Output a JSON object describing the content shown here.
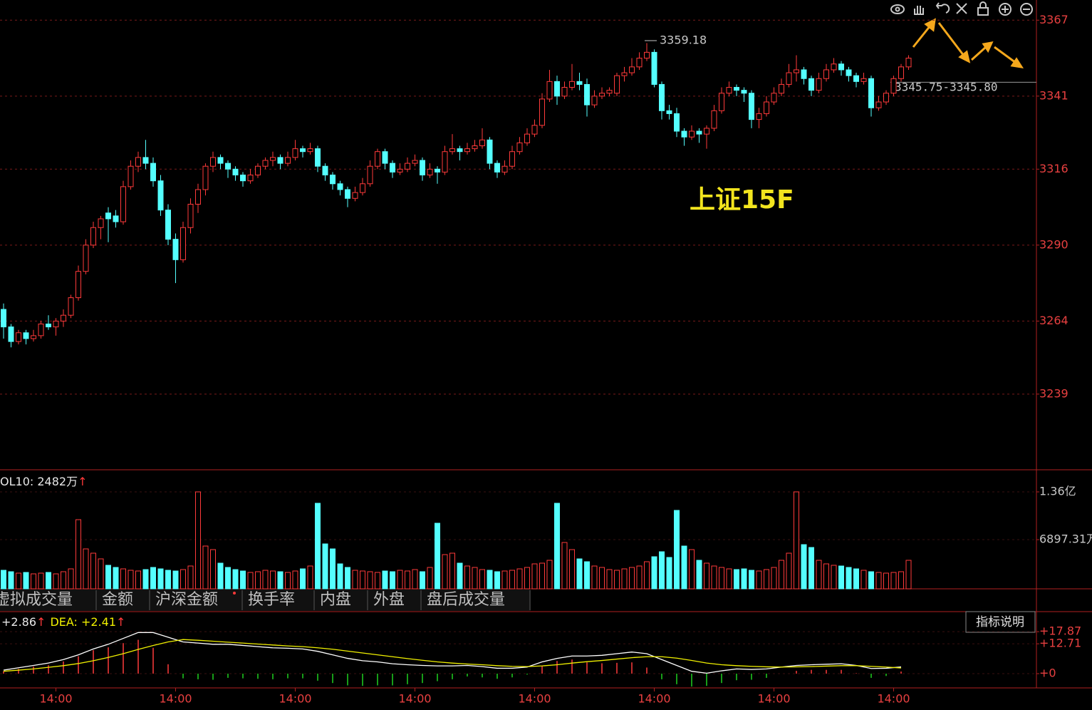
{
  "chart_data": [
    {
      "type": "candlestick",
      "up_color": "#ff3a3a",
      "down_color": "#54ffff",
      "ylim": [
        3213.1,
        3373.9
      ],
      "yticks": [
        3367,
        3341,
        3316,
        3290,
        3264,
        3239
      ],
      "grid": true,
      "categories": [
        null,
        null,
        null,
        null,
        null,
        null,
        null,
        "14:00",
        null,
        null,
        null,
        null,
        null,
        null,
        null,
        null,
        null,
        null,
        null,
        null,
        null,
        null,
        null,
        "14:00",
        null,
        null,
        null,
        null,
        null,
        null,
        null,
        null,
        null,
        null,
        null,
        null,
        null,
        null,
        null,
        "14:00",
        null,
        null,
        null,
        null,
        null,
        null,
        null,
        null,
        null,
        null,
        null,
        null,
        null,
        null,
        null,
        "14:00",
        null,
        null,
        null,
        null,
        null,
        null,
        null,
        null,
        null,
        null,
        null,
        null,
        null,
        null,
        null,
        "14:00",
        null,
        null,
        null,
        null,
        null,
        null,
        null,
        null,
        null,
        null,
        null,
        null,
        null,
        null,
        null,
        "14:00",
        null,
        null,
        null,
        null,
        null,
        null,
        null,
        null,
        null,
        null,
        null,
        null,
        null,
        null,
        null,
        "14:00",
        null,
        null,
        null,
        null,
        null,
        null,
        null,
        null,
        null,
        null,
        null,
        null,
        null,
        null,
        null,
        "14:00",
        null,
        null
      ],
      "candles": [
        [
          3268,
          3270,
          3258,
          3262
        ],
        [
          3262,
          3263,
          3255,
          3257
        ],
        [
          3257,
          3261,
          3256,
          3260
        ],
        [
          3260,
          3261,
          3256,
          3258
        ],
        [
          3258,
          3261,
          3257,
          3259
        ],
        [
          3259,
          3264,
          3258,
          3263
        ],
        [
          3263,
          3266,
          3261,
          3262
        ],
        [
          3262,
          3265,
          3259,
          3264
        ],
        [
          3264,
          3268,
          3262,
          3266
        ],
        [
          3266,
          3273,
          3265,
          3272
        ],
        [
          3272,
          3283,
          3271,
          3281
        ],
        [
          3281,
          3292,
          3280,
          3290
        ],
        [
          3290,
          3298,
          3289,
          3296
        ],
        [
          3296,
          3300,
          3292,
          3299
        ],
        [
          3301,
          3303,
          3291,
          3299
        ],
        [
          3300,
          3302,
          3296,
          3298
        ],
        [
          3298,
          3312,
          3297,
          3310
        ],
        [
          3310,
          3319,
          3309,
          3317
        ],
        [
          3317,
          3322,
          3315,
          3320
        ],
        [
          3320,
          3326,
          3316,
          3318
        ],
        [
          3318,
          3320,
          3310,
          3312
        ],
        [
          3312,
          3314,
          3300,
          3302
        ],
        [
          3302,
          3304,
          3290,
          3292
        ],
        [
          3292,
          3294,
          3277,
          3285
        ],
        [
          3285,
          3298,
          3284,
          3296
        ],
        [
          3296,
          3306,
          3294,
          3304
        ],
        [
          3304,
          3311,
          3301,
          3309
        ],
        [
          3309,
          3318,
          3307,
          3317
        ],
        [
          3317,
          3322,
          3315,
          3320
        ],
        [
          3320,
          3321,
          3316,
          3318
        ],
        [
          3318,
          3319,
          3313,
          3316
        ],
        [
          3316,
          3317,
          3312,
          3314
        ],
        [
          3314,
          3315,
          3310,
          3312
        ],
        [
          3312,
          3316,
          3311,
          3314
        ],
        [
          3314,
          3318,
          3313,
          3317
        ],
        [
          3317,
          3320,
          3316,
          3319
        ],
        [
          3319,
          3322,
          3317,
          3320
        ],
        [
          3320,
          3321,
          3316,
          3318
        ],
        [
          3318,
          3322,
          3317,
          3320
        ],
        [
          3320,
          3326,
          3319,
          3323
        ],
        [
          3323,
          3324,
          3320,
          3322
        ],
        [
          3322,
          3325,
          3321,
          3323
        ],
        [
          3323,
          3324,
          3315,
          3317
        ],
        [
          3317,
          3318,
          3312,
          3314
        ],
        [
          3314,
          3315,
          3309,
          3311
        ],
        [
          3311,
          3312,
          3307,
          3309
        ],
        [
          3309,
          3310,
          3303,
          3306
        ],
        [
          3306,
          3310,
          3305,
          3308
        ],
        [
          3308,
          3313,
          3307,
          3311
        ],
        [
          3311,
          3319,
          3310,
          3317
        ],
        [
          3317,
          3323,
          3316,
          3322
        ],
        [
          3322,
          3323,
          3316,
          3318
        ],
        [
          3318,
          3319,
          3313,
          3315
        ],
        [
          3315,
          3318,
          3314,
          3316
        ],
        [
          3316,
          3320,
          3315,
          3318
        ],
        [
          3318,
          3321,
          3317,
          3319
        ],
        [
          3319,
          3320,
          3312,
          3314
        ],
        [
          3314,
          3318,
          3313,
          3316
        ],
        [
          3316,
          3317,
          3311,
          3315
        ],
        [
          3315,
          3324,
          3314,
          3322
        ],
        [
          3322,
          3328,
          3321,
          3323
        ],
        [
          3323,
          3324,
          3319,
          3322
        ],
        [
          3322,
          3325,
          3321,
          3323
        ],
        [
          3323,
          3326,
          3322,
          3324
        ],
        [
          3324,
          3330,
          3323,
          3326
        ],
        [
          3326,
          3327,
          3316,
          3318
        ],
        [
          3318,
          3319,
          3313,
          3315
        ],
        [
          3315,
          3319,
          3314,
          3317
        ],
        [
          3317,
          3324,
          3316,
          3322
        ],
        [
          3322,
          3327,
          3321,
          3325
        ],
        [
          3325,
          3330,
          3324,
          3328
        ],
        [
          3328,
          3333,
          3327,
          3331
        ],
        [
          3331,
          3342,
          3330,
          3340
        ],
        [
          3340,
          3350,
          3339,
          3346
        ],
        [
          3346,
          3348,
          3338,
          3341
        ],
        [
          3341,
          3346,
          3340,
          3344
        ],
        [
          3344,
          3352,
          3343,
          3346
        ],
        [
          3346,
          3349,
          3343,
          3345
        ],
        [
          3345,
          3347,
          3334,
          3338
        ],
        [
          3338,
          3343,
          3337,
          3341
        ],
        [
          3341,
          3344,
          3340,
          3342
        ],
        [
          3342,
          3344,
          3341,
          3343
        ],
        [
          3342,
          3349,
          3341,
          3348
        ],
        [
          3348,
          3351,
          3346,
          3349
        ],
        [
          3349,
          3354,
          3348,
          3351
        ],
        [
          3351,
          3356,
          3350,
          3354
        ],
        [
          3354,
          3359.18,
          3353,
          3356
        ],
        [
          3356,
          3357,
          3344,
          3345
        ],
        [
          3345,
          3346,
          3333,
          3336
        ],
        [
          3336,
          3338,
          3333,
          3335
        ],
        [
          3335,
          3337,
          3327,
          3329
        ],
        [
          3329,
          3330,
          3324,
          3327
        ],
        [
          3327,
          3331,
          3326,
          3329
        ],
        [
          3329,
          3330,
          3325,
          3328
        ],
        [
          3328,
          3331,
          3323,
          3330
        ],
        [
          3330,
          3338,
          3329,
          3336
        ],
        [
          3336,
          3344,
          3335,
          3342
        ],
        [
          3342,
          3346,
          3341,
          3344
        ],
        [
          3344,
          3345,
          3341,
          3343
        ],
        [
          3343,
          3344,
          3339,
          3342
        ],
        [
          3342,
          3343,
          3330,
          3333
        ],
        [
          3333,
          3337,
          3330,
          3335
        ],
        [
          3335,
          3341,
          3334,
          3339
        ],
        [
          3339,
          3344,
          3338,
          3342
        ],
        [
          3342,
          3347,
          3341,
          3345
        ],
        [
          3345,
          3352,
          3344,
          3349
        ],
        [
          3349,
          3355,
          3346,
          3350
        ],
        [
          3350,
          3351,
          3345,
          3347
        ],
        [
          3347,
          3348,
          3341,
          3343
        ],
        [
          3343,
          3349,
          3342,
          3347
        ],
        [
          3347,
          3352,
          3346,
          3350
        ],
        [
          3350,
          3354,
          3349,
          3352
        ],
        [
          3352,
          3353,
          3348,
          3350
        ],
        [
          3350,
          3351,
          3346,
          3348
        ],
        [
          3348,
          3349,
          3344,
          3346
        ],
        [
          3346,
          3349,
          3345,
          3347
        ],
        [
          3347,
          3348,
          3334,
          3337
        ],
        [
          3337,
          3341,
          3336,
          3339
        ],
        [
          3339,
          3343,
          3338,
          3342
        ],
        [
          3342,
          3348,
          3341,
          3347
        ],
        [
          3347,
          3352,
          3346,
          3351
        ],
        [
          3351,
          3355,
          3350,
          3354
        ]
      ],
      "high_label": "3359.18",
      "price_line": {
        "value": 3345.75,
        "label": "3345.75-3345.80"
      },
      "watermark": "上证15F"
    },
    {
      "type": "volume",
      "legend": "OL10: 2482万",
      "legend_arrow": "↑",
      "ylim": [
        0,
        16600
      ],
      "yticks": [
        {
          "value": 13600,
          "label": "1.36亿"
        },
        {
          "value": 6897.31,
          "label": "6897.31万"
        }
      ],
      "values": [
        2600,
        2400,
        2200,
        2300,
        2100,
        2200,
        2300,
        2100,
        2400,
        2800,
        9700,
        5600,
        5000,
        4200,
        3300,
        3000,
        2800,
        2600,
        2500,
        2700,
        3000,
        2800,
        2600,
        2500,
        2700,
        3200,
        13600,
        6000,
        5500,
        3600,
        3000,
        2700,
        2500,
        2300,
        2400,
        2600,
        2500,
        2400,
        2300,
        2500,
        2800,
        3200,
        12000,
        6300,
        5600,
        3500,
        3000,
        2600,
        2500,
        2400,
        2300,
        2500,
        2400,
        2600,
        2500,
        2700,
        2400,
        3000,
        9200,
        4800,
        5000,
        3600,
        3200,
        3000,
        2700,
        2600,
        2400,
        2500,
        2600,
        2800,
        3000,
        3500,
        3600,
        4000,
        12000,
        6500,
        5500,
        4200,
        3800,
        3200,
        3000,
        2700,
        2600,
        2800,
        3000,
        3200,
        3800,
        4500,
        5200,
        4400,
        11000,
        6000,
        5500,
        4000,
        3600,
        3200,
        3000,
        2800,
        2700,
        2800,
        2600,
        2500,
        2700,
        3000,
        4000,
        5000,
        13600,
        6200,
        5800,
        4000,
        3500,
        3300,
        3200,
        3000,
        2800,
        2600,
        2400,
        2300,
        2200,
        2300,
        2400,
        4000
      ]
    },
    {
      "type": "macd",
      "legend": [
        "+2.86",
        "↑",
        "DEA: +2.41",
        "↑"
      ],
      "ylim": [
        -6.07,
        26.4
      ],
      "yticks": [
        {
          "value": 17.87,
          "label": "+17.87"
        },
        {
          "value": 12.71,
          "label": "+12.71"
        },
        {
          "value": 0,
          "label": "+0"
        }
      ],
      "series": [
        {
          "name": "DIF",
          "color": "#ffffff",
          "values": [
            1.5,
            2.5,
            3.5,
            4.5,
            6,
            8,
            10.5,
            12.5,
            15,
            17.5,
            17.5,
            15.5,
            13.5,
            13,
            12.5,
            12.5,
            12,
            11.5,
            11,
            10.8,
            10.5,
            9.5,
            8,
            6.5,
            5.5,
            5,
            4.2,
            3.8,
            3.5,
            3.3,
            3.3,
            3.5,
            3,
            2.3,
            2.3,
            2.8,
            5,
            6.5,
            7.5,
            7.5,
            7.8,
            8.5,
            9.2,
            8.5,
            6,
            3.5,
            1,
            0.2,
            1.2,
            2,
            1.8,
            2,
            2.8,
            3.5,
            3.8,
            4,
            4.2,
            3.5,
            2.2,
            2.3,
            2.86
          ]
        },
        {
          "name": "DEA",
          "color": "#f0f000",
          "values": [
            1,
            1.5,
            2,
            2.7,
            3.4,
            4.3,
            5.5,
            6.9,
            8.5,
            10.3,
            12,
            13.5,
            14.5,
            14.2,
            13.8,
            13.4,
            13,
            12.6,
            12.2,
            11.8,
            11.5,
            11,
            10.4,
            9.6,
            8.8,
            8,
            7.2,
            6.4,
            5.7,
            5,
            4.5,
            4.1,
            3.8,
            3.4,
            3.1,
            3,
            3.3,
            3.8,
            4.5,
            5.1,
            5.6,
            6.2,
            6.8,
            7.2,
            7.2,
            6.6,
            5.6,
            4.5,
            3.8,
            3.4,
            3.1,
            2.9,
            2.8,
            2.9,
            3,
            3.2,
            3.4,
            3.4,
            3.1,
            2.8,
            2.41
          ]
        },
        {
          "name": "MACD",
          "color": "#ff3a3a",
          "negative_color": "#20d020",
          "values": [
            1,
            2,
            3,
            3.6,
            5.2,
            7.4,
            10,
            11.2,
            13,
            14.4,
            11,
            4,
            -2,
            -2.4,
            -2.6,
            -1.8,
            -2,
            -2.2,
            -2.4,
            -2,
            -2,
            -3,
            -4,
            -5,
            -5.2,
            -5,
            -5,
            -4.5,
            -4,
            -3.2,
            -2.4,
            -1.2,
            -1.6,
            -2.2,
            -1.6,
            -0.4,
            3.4,
            5.4,
            6,
            4.8,
            4.4,
            4.6,
            4.8,
            2.6,
            -2.4,
            -4.5,
            -5.5,
            -5.2,
            -4,
            -2.8,
            -2.6,
            -1.8,
            0,
            1.2,
            1.6,
            1.6,
            1.6,
            0.2,
            -1.8,
            -1,
            0.9
          ]
        }
      ]
    }
  ],
  "tabs": [
    "虚拟成交量",
    "金额",
    "沪深金额",
    "换手率",
    "内盘",
    "外盘",
    "盘后成交量"
  ],
  "indicator_button": "指标说明"
}
